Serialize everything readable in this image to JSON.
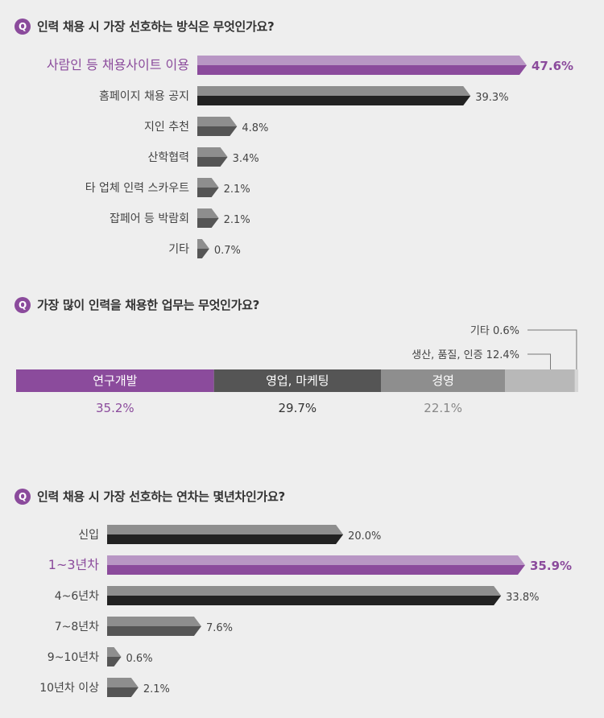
{
  "q1": {
    "badge": "Q",
    "title": "인력 채용 시 가장 선호하는 방식은 무엇인가요?"
  },
  "q2": {
    "badge": "Q",
    "title": "가장 많이 인력을 채용한 업무는 무엇인가요?"
  },
  "q3": {
    "badge": "Q",
    "title": "인력 채용 시 가장 선호하는 연차는 몇년차인가요?"
  },
  "colors": {
    "purple": "#8b4b9c",
    "purple_light": "#b896c4",
    "dark": "#222222",
    "mid": "#555555",
    "gray": "#8e8e8e",
    "light_gray": "#b8b8b8",
    "background": "#eeeeee"
  },
  "chart_data": [
    {
      "type": "bar",
      "orientation": "horizontal",
      "categories": [
        "사람인 등 채용사이트 이용",
        "홈페이지 채용 공지",
        "지인 추천",
        "산학협력",
        "타 업체 인력 스카우트",
        "잡페어 등 박람회",
        "기타"
      ],
      "values": [
        47.6,
        39.3,
        4.8,
        3.4,
        2.1,
        2.1,
        0.7
      ],
      "value_labels": [
        "47.6%",
        "39.3%",
        "4.8%",
        "3.4%",
        "2.1%",
        "2.1%",
        "0.7%"
      ],
      "highlight_index": 0,
      "unit": "%"
    },
    {
      "type": "bar",
      "orientation": "stacked-horizontal",
      "categories": [
        "연구개발",
        "영업, 마케팅",
        "경영",
        "생산, 품질, 인증",
        "기타"
      ],
      "values": [
        35.2,
        29.7,
        22.1,
        12.4,
        0.6
      ],
      "value_labels": [
        "35.2%",
        "29.7%",
        "22.1%",
        "12.4%",
        "0.6%"
      ],
      "unit": "%"
    },
    {
      "type": "bar",
      "orientation": "horizontal",
      "categories": [
        "신입",
        "1~3년차",
        "4~6년차",
        "7~8년차",
        "9~10년차",
        "10년차 이상"
      ],
      "values": [
        20.0,
        35.9,
        33.8,
        7.6,
        0.6,
        2.1
      ],
      "value_labels": [
        "20.0%",
        "35.9%",
        "33.8%",
        "7.6%",
        "0.6%",
        "2.1%"
      ],
      "highlight_index": 1,
      "unit": "%"
    }
  ]
}
